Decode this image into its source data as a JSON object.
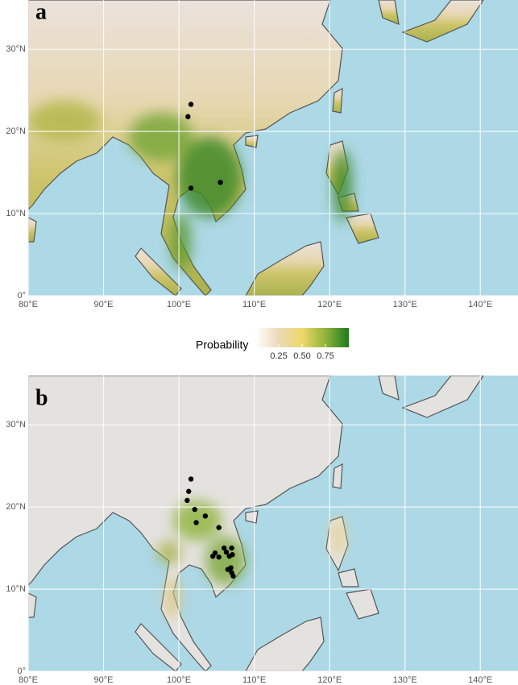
{
  "panels": [
    {
      "label": "a",
      "points": [
        {
          "lon": 101.6,
          "lat": 23.3
        },
        {
          "lon": 101.2,
          "lat": 21.8
        },
        {
          "lon": 101.6,
          "lat": 13.1
        },
        {
          "lon": 105.5,
          "lat": 13.8
        }
      ]
    },
    {
      "label": "b",
      "points": [
        {
          "lon": 101.6,
          "lat": 23.4
        },
        {
          "lon": 101.3,
          "lat": 21.9
        },
        {
          "lon": 101.1,
          "lat": 20.8
        },
        {
          "lon": 102.1,
          "lat": 19.7
        },
        {
          "lon": 103.5,
          "lat": 18.9
        },
        {
          "lon": 102.3,
          "lat": 18.1
        },
        {
          "lon": 105.3,
          "lat": 17.5
        },
        {
          "lon": 104.8,
          "lat": 14.4
        },
        {
          "lon": 104.5,
          "lat": 14.0
        },
        {
          "lon": 105.3,
          "lat": 13.9
        },
        {
          "lon": 106.0,
          "lat": 15.0
        },
        {
          "lon": 106.3,
          "lat": 14.5
        },
        {
          "lon": 107.0,
          "lat": 15.0
        },
        {
          "lon": 107.1,
          "lat": 14.2
        },
        {
          "lon": 106.7,
          "lat": 14.0
        },
        {
          "lon": 106.5,
          "lat": 12.4
        },
        {
          "lon": 107.0,
          "lat": 12.0
        },
        {
          "lon": 107.2,
          "lat": 11.6
        },
        {
          "lon": 106.9,
          "lat": 12.6
        }
      ]
    }
  ],
  "xlim": [
    80,
    145
  ],
  "ylim": [
    0,
    36
  ],
  "xticks": [
    {
      "value": 80,
      "label": "80°E"
    },
    {
      "value": 90,
      "label": "90°E"
    },
    {
      "value": 100,
      "label": "100°E"
    },
    {
      "value": 110,
      "label": "110°E"
    },
    {
      "value": 120,
      "label": "120°E"
    },
    {
      "value": 130,
      "label": "130°E"
    },
    {
      "value": 140,
      "label": "140°E"
    }
  ],
  "yticks": [
    {
      "value": 0,
      "label": "0°"
    },
    {
      "value": 10,
      "label": "10°N"
    },
    {
      "value": 20,
      "label": "20°N"
    },
    {
      "value": 30,
      "label": "30°N"
    }
  ],
  "legend": {
    "title": "Probability",
    "range": [
      0,
      1
    ],
    "ticks": [
      0.25,
      {
        "value": 0.5,
        "label": "0.50"
      },
      0.75
    ]
  }
}
